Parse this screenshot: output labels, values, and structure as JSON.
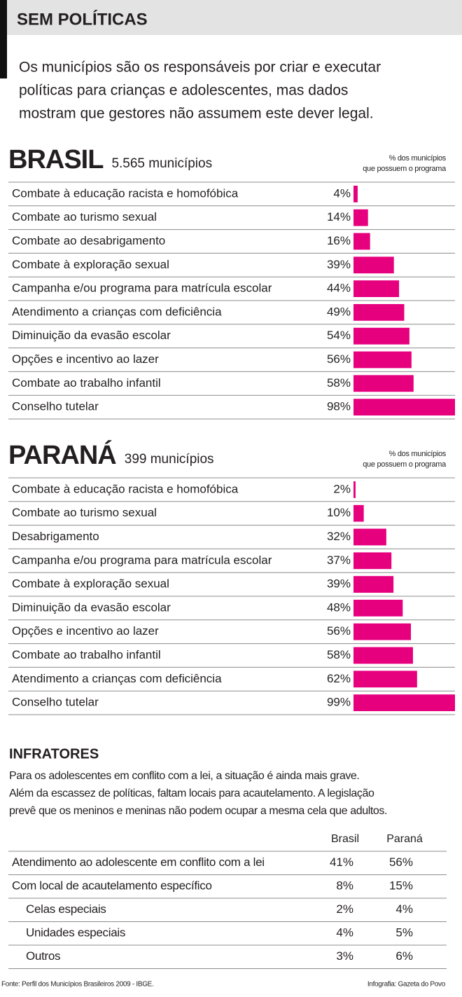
{
  "header": {
    "title": "SEM POLÍTICAS",
    "intro": [
      "Os municípios são os responsáveis por criar e executar",
      "políticas para crianças e adolescentes, mas dados",
      "mostram que gestores não assumem este dever legal."
    ]
  },
  "chart_data": [
    {
      "type": "bar",
      "title": "BRASIL",
      "subtitle": "5.565 municípios",
      "axis_note": [
        "% dos municípios",
        "que possuem o programa"
      ],
      "categories": [
        "Combate à educação racista e homofóbica",
        "Combate ao turismo sexual",
        "Combate ao desabrigamento",
        "Combate à exploração sexual",
        "Campanha e/ou programa para matrícula escolar",
        "Atendimento a crianças com deficiência",
        "Diminuição da evasão escolar",
        "Opções e incentivo ao lazer",
        "Combate ao trabalho infantil",
        "Conselho tutelar"
      ],
      "values": [
        4,
        14,
        16,
        39,
        44,
        49,
        54,
        56,
        58,
        98
      ],
      "value_labels": [
        "4%",
        "14%",
        "16%",
        "39%",
        "44%",
        "49%",
        "54%",
        "56%",
        "58%",
        "98%"
      ],
      "color": "#e6007e"
    },
    {
      "type": "bar",
      "title": "PARANÁ",
      "subtitle": "399 municípios",
      "axis_note": [
        "% dos municípios",
        "que possuem o programa"
      ],
      "categories": [
        "Combate à educação racista e homofóbica",
        "Combate ao turismo sexual",
        "Desabrigamento",
        "Campanha e/ou programa para matrícula escolar",
        "Combate à exploração sexual",
        "Diminuição da evasão escolar",
        "Opções e incentivo ao lazer",
        "Combate ao trabalho infantil",
        "Atendimento a crianças com deficiência",
        "Conselho tutelar"
      ],
      "values": [
        2,
        10,
        32,
        37,
        39,
        48,
        56,
        58,
        62,
        99
      ],
      "value_labels": [
        "2%",
        "10%",
        "32%",
        "37%",
        "39%",
        "48%",
        "56%",
        "58%",
        "62%",
        "99%"
      ],
      "color": "#e6007e"
    }
  ],
  "infratores": {
    "title": "INFRATORES",
    "text": [
      "Para os adolescentes em conflito com a lei, a situação é ainda mais grave.",
      "Além da escassez de políticas, faltam locais para acautelamento. A legislação",
      "prevê que os meninos e meninas não podem ocupar a mesma cela que adultos."
    ],
    "table": {
      "columns": [
        "Brasil",
        "Paraná"
      ],
      "rows": [
        {
          "label": "Atendimento ao adolescente em conflito com a lei",
          "cells": [
            "41%",
            "56%"
          ]
        },
        {
          "label": "Com local de acautelamento específico",
          "cells": [
            "8%",
            "15%"
          ],
          "subrows": [
            {
              "label": "Celas especiais",
              "cells": [
                "2%",
                "4%"
              ]
            },
            {
              "label": "Unidades especiais",
              "cells": [
                "4%",
                "5%"
              ]
            },
            {
              "label": "Outros",
              "cells": [
                "3%",
                "6%"
              ]
            }
          ]
        }
      ]
    }
  },
  "footer": {
    "source": "Fonte: Perfil dos Municípios Brasileiros 2009 - IBGE.",
    "credit": "Infografia: Gazeta do Povo"
  }
}
